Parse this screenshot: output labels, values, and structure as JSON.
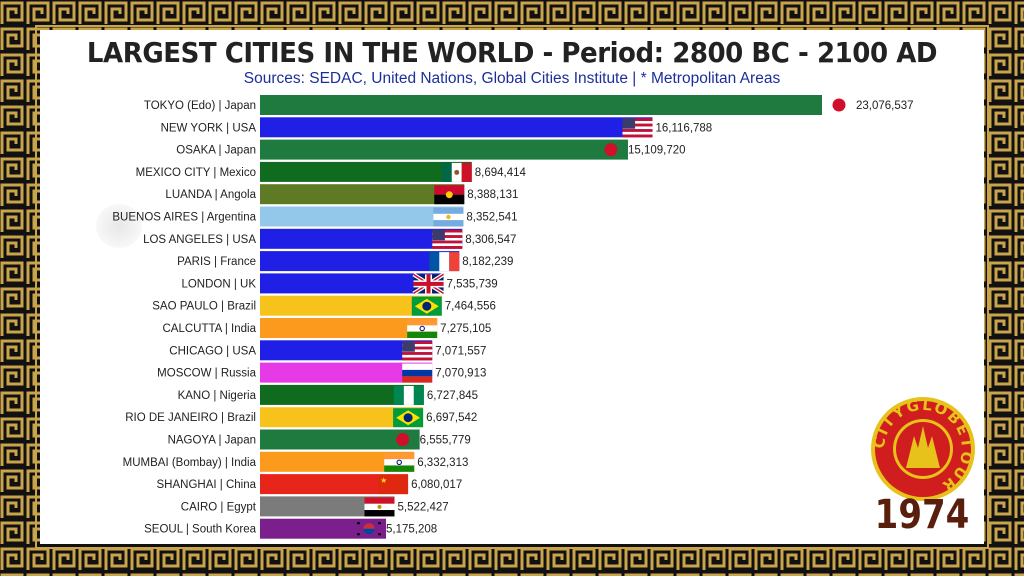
{
  "title": "LARGEST CITIES IN THE WORLD - Period: 2800 BC - 2100 AD",
  "subtitle": "Sources: SEDAC, United Nations, Global Cities Institute | * Metropolitan Areas",
  "year": "1974",
  "logo_text": "CITYGLOBETOUR",
  "colors": {
    "frame_gold": "#c9a44a",
    "frame_dark": "#111111",
    "title": "#222222",
    "subtitle": "#1b2f9a",
    "year": "#5a1f0c"
  },
  "chart_data": {
    "type": "bar",
    "orientation": "horizontal",
    "categories": [
      "TOKYO (Edo) | Japan",
      "NEW YORK | USA",
      "OSAKA | Japan",
      "MEXICO CITY | Mexico",
      "LUANDA | Angola",
      "BUENOS AIRES | Argentina",
      "LOS ANGELES | USA",
      "PARIS | France",
      "LONDON | UK",
      "SAO PAULO | Brazil",
      "CALCUTTA | India",
      "CHICAGO | USA",
      "MOSCOW | Russia",
      "KANO | Nigeria",
      "RIO DE JANEIRO | Brazil",
      "NAGOYA | Japan",
      "MUMBAI (Bombay) | India",
      "SHANGHAI | China",
      "CAIRO | Egypt",
      "SEOUL | South Korea"
    ],
    "values": [
      23076537,
      16116788,
      15109720,
      8694414,
      8388131,
      8352541,
      8306547,
      8182239,
      7535739,
      7464556,
      7275105,
      7071557,
      7070913,
      6727845,
      6697542,
      6555779,
      6332313,
      6080017,
      5522427,
      5175208
    ],
    "value_labels": [
      "23,076,537",
      "16,116,788",
      "15,109,720",
      "8,694,414",
      "8,388,131",
      "8,352,541",
      "8,306,547",
      "8,182,239",
      "7,535,739",
      "7,464,556",
      "7,275,105",
      "7,071,557",
      "7,070,913",
      "6,727,845",
      "6,697,542",
      "6,555,779",
      "6,332,313",
      "6,080,017",
      "5,522,427",
      "5,175,208"
    ],
    "bar_colors": [
      "#1e7a3f",
      "#1f1fe6",
      "#1e7a3f",
      "#0f6b1e",
      "#5e7a24",
      "#93c8ea",
      "#1f1fe6",
      "#1f1fe6",
      "#1f1fe6",
      "#f7c31b",
      "#fb9a1c",
      "#1f1fe6",
      "#e53ae5",
      "#0f6b1e",
      "#f7c31b",
      "#1e7a3f",
      "#fb9a1c",
      "#e8251b",
      "#7b7b7b",
      "#7a1f8c"
    ],
    "flags": [
      "japan",
      "usa",
      "japan",
      "mexico",
      "angola",
      "argentina",
      "usa",
      "france",
      "uk",
      "brazil",
      "india",
      "usa",
      "russia",
      "nigeria",
      "brazil",
      "japan",
      "india",
      "china",
      "egypt",
      "south-korea"
    ],
    "xlim": [
      0,
      23076537
    ],
    "grid": false,
    "legend": "none"
  }
}
